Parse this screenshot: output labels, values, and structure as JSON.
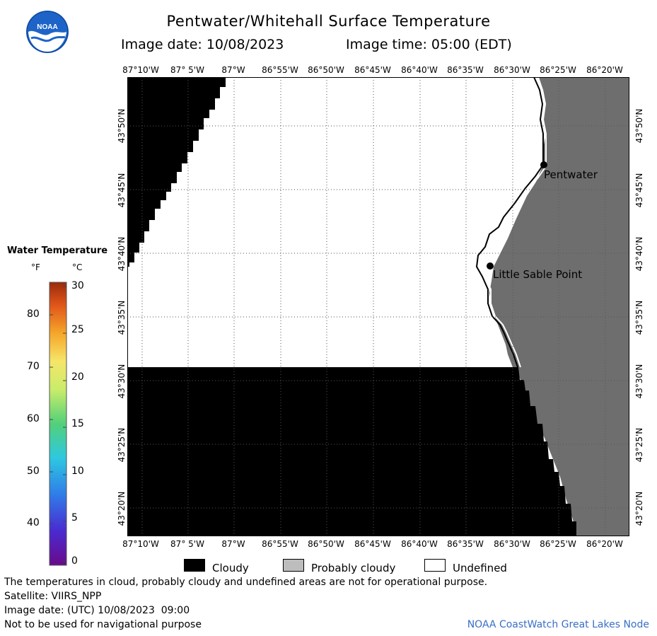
{
  "header": {
    "title": "Pentwater/Whitehall Surface Temperature",
    "image_date": "Image date: 10/08/2023",
    "image_time": "Image time: 05:00 (EDT)"
  },
  "logo": {
    "text": "NOAA"
  },
  "map": {
    "lon_labels": [
      "87°10'W",
      "87° 5'W",
      "87°W",
      "86°55'W",
      "86°50'W",
      "86°45'W",
      "86°40'W",
      "86°35'W",
      "86°30'W",
      "86°25'W",
      "86°20'W"
    ],
    "lat_labels": [
      "43°50'N",
      "43°45'N",
      "43°40'N",
      "43°35'N",
      "43°30'N",
      "43°25'N",
      "43°20'N"
    ],
    "places": [
      {
        "name": "Pentwater"
      },
      {
        "name": "Little Sable Point"
      }
    ],
    "colors": {
      "cloud": "#000000",
      "land": "#6e6e6e",
      "undefined": "#ffffff",
      "grid": "#555555"
    }
  },
  "legend": {
    "title": "Water Temperature",
    "unit_f": "°F",
    "unit_c": "°C",
    "f_ticks": [
      "80",
      "70",
      "60",
      "50",
      "40"
    ],
    "c_ticks": [
      "30",
      "25",
      "20",
      "15",
      "10",
      "5",
      "0"
    ],
    "range_c": [
      0,
      30
    ]
  },
  "key": [
    {
      "label": "Cloudy",
      "color": "#000000"
    },
    {
      "label": "Probably cloudy",
      "color": "#bdbdbd"
    },
    {
      "label": "Undefined",
      "color": "#ffffff"
    }
  ],
  "footer": {
    "note": "The temperatures in cloud, probably cloudy and undefined areas are not for operational purpose.",
    "satellite": "Satellite: VIIRS_NPP",
    "utc_date": "Image date: (UTC) 10/08/2023  09:00",
    "nav_warning": "Not to be used for navigational purpose",
    "credit": "NOAA CoastWatch Great Lakes Node"
  }
}
